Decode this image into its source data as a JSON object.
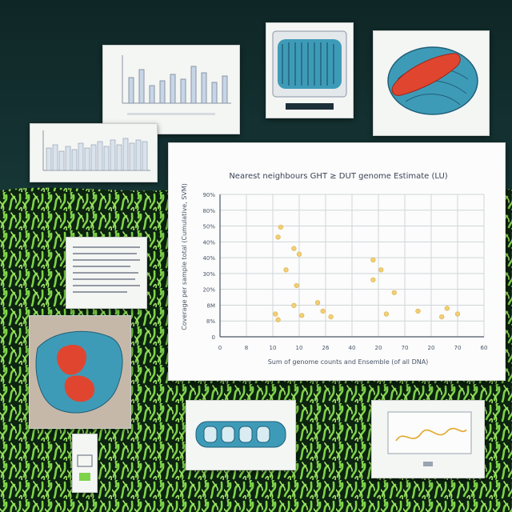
{
  "colors": {
    "background_top": "#163232",
    "grass": "#7fd34a",
    "grass_dark": "#0c2410",
    "point": "#f3cf73",
    "grid": "#cfd6d9",
    "axis": "#4a5468",
    "accent_red": "#e0462f",
    "accent_blue": "#3e9bb8"
  },
  "chart_data": {
    "type": "scatter",
    "title": "Nearest neighbours GHT ≥ DUT genome Estimate (LU)",
    "xlabel": "Sum of genome counts and Ensemble (of all DNA)",
    "ylabel": "Coverage per sample total (Cumulative, SVM)",
    "xlim": [
      0,
      100
    ],
    "ylim": [
      0,
      100
    ],
    "xticks": [
      "0",
      "8",
      "10",
      "10",
      "26",
      "40",
      "20",
      "70",
      "20",
      "70",
      "60"
    ],
    "yticks": [
      "0",
      "8%",
      "8M",
      "20%",
      "30%",
      "40%",
      "40%",
      "50%",
      "80%",
      "90%"
    ],
    "grid": true,
    "points": [
      {
        "x": 21,
        "y": 16
      },
      {
        "x": 23,
        "y": 77
      },
      {
        "x": 22,
        "y": 70
      },
      {
        "x": 25,
        "y": 47
      },
      {
        "x": 22,
        "y": 12
      },
      {
        "x": 28,
        "y": 62
      },
      {
        "x": 30,
        "y": 58
      },
      {
        "x": 29,
        "y": 36
      },
      {
        "x": 28,
        "y": 22
      },
      {
        "x": 31,
        "y": 15
      },
      {
        "x": 37,
        "y": 24
      },
      {
        "x": 39,
        "y": 18
      },
      {
        "x": 42,
        "y": 14
      },
      {
        "x": 58,
        "y": 54
      },
      {
        "x": 58,
        "y": 40
      },
      {
        "x": 61,
        "y": 47
      },
      {
        "x": 66,
        "y": 31
      },
      {
        "x": 63,
        "y": 16
      },
      {
        "x": 75,
        "y": 18
      },
      {
        "x": 86,
        "y": 20
      },
      {
        "x": 84,
        "y": 14
      },
      {
        "x": 90,
        "y": 16
      }
    ]
  }
}
